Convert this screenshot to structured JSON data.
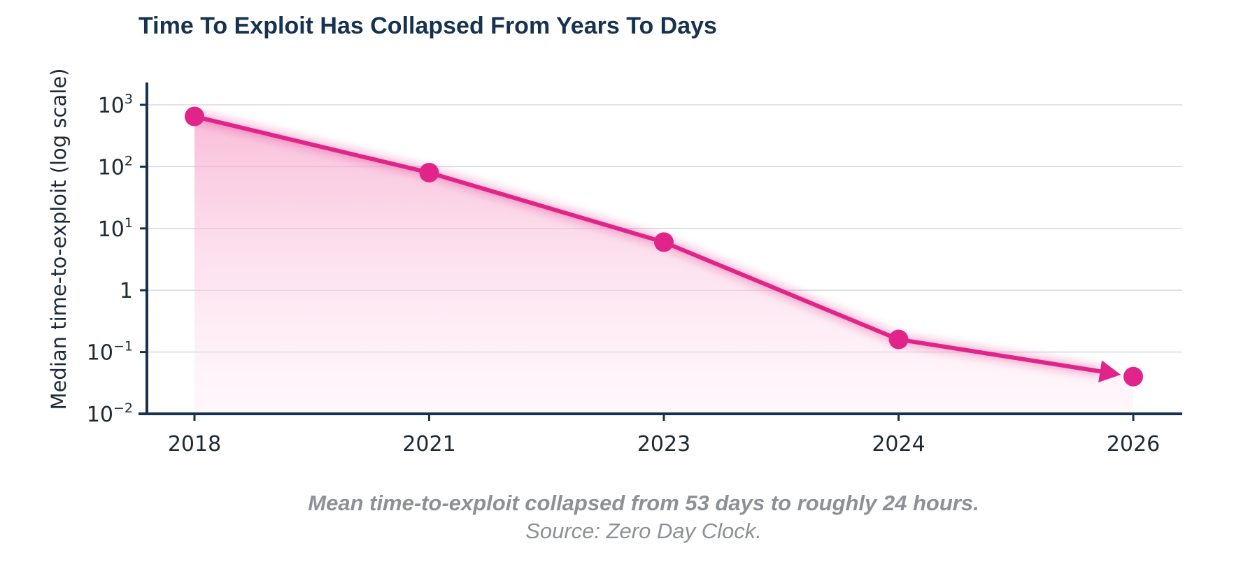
{
  "chart_data": {
    "type": "line",
    "title": "Time To Exploit Has Collapsed From Years To Days",
    "xlabel": "",
    "ylabel": "Median time-to-exploit (log scale)",
    "y_scale": "log",
    "ylim": [
      0.01,
      1000
    ],
    "y_ticks": [
      {
        "value": 0.01,
        "base": "10",
        "exp": "−2"
      },
      {
        "value": 0.1,
        "base": "10",
        "exp": "−1"
      },
      {
        "value": 1,
        "base": "1",
        "exp": ""
      },
      {
        "value": 10,
        "base": "10",
        "exp": "1"
      },
      {
        "value": 100,
        "base": "10",
        "exp": "2"
      },
      {
        "value": 1000,
        "base": "10",
        "exp": "3"
      }
    ],
    "categories": [
      "2018",
      "2021",
      "2023",
      "2024",
      "2026"
    ],
    "series": [
      {
        "values": [
          650,
          80,
          6,
          0.16,
          0.04
        ],
        "color": "#e0248a",
        "marker": "circle",
        "area_fill": true,
        "end_arrow": true
      }
    ],
    "grid": true,
    "legend": "none",
    "caption": "Mean time-to-exploit collapsed from 53 days to roughly 24 hours.",
    "source": "Source: Zero Day Clock.",
    "colors": {
      "line": "#e0248a",
      "axis": "#17324f",
      "grid": "#d5dbe2",
      "title": "#17324f",
      "caption": "#8d9196"
    }
  }
}
